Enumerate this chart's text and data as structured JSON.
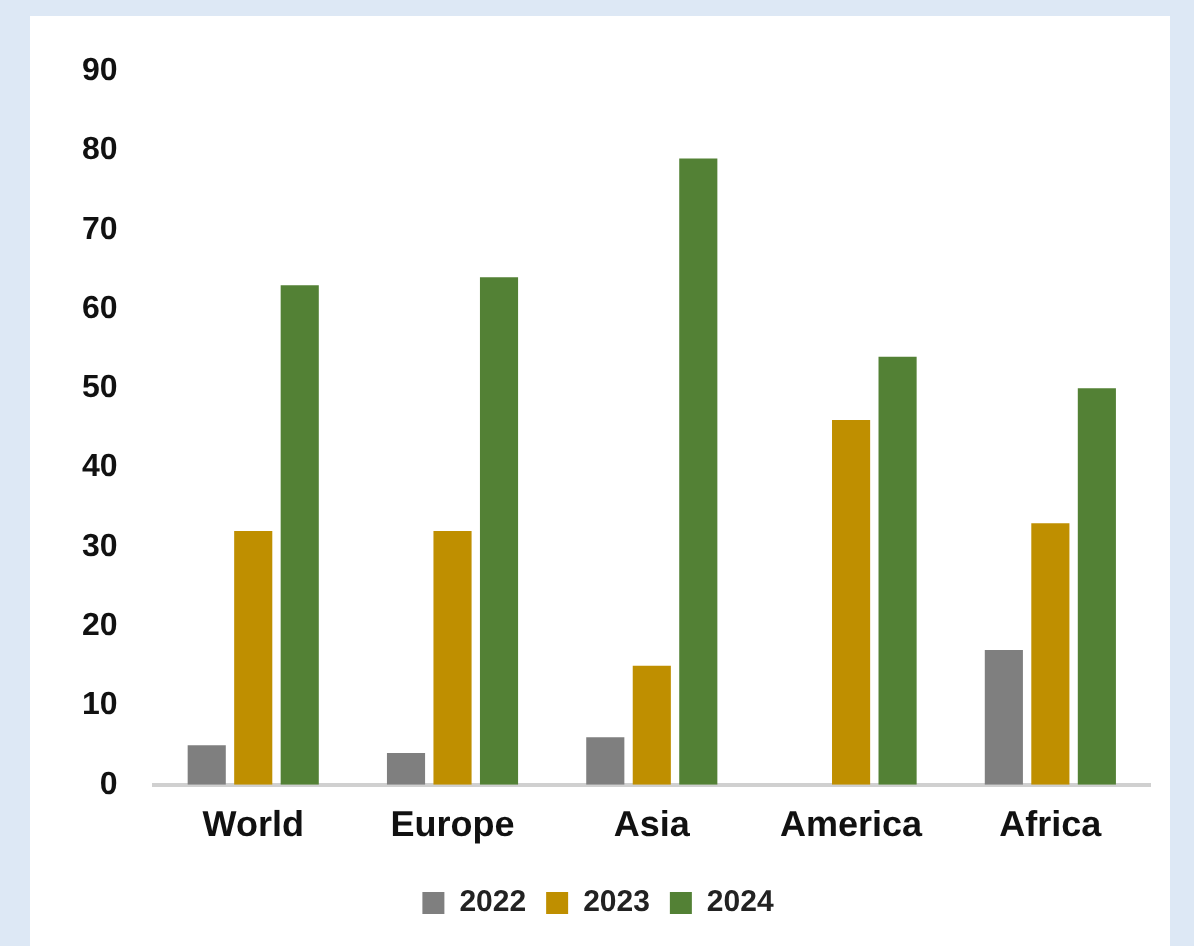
{
  "chart_data": {
    "type": "bar",
    "categories": [
      "World",
      "Europe",
      "Asia",
      "America",
      "Africa"
    ],
    "series": [
      {
        "name": "2022",
        "color": "#7f7f7f",
        "values": [
          5,
          4,
          6,
          null,
          17
        ]
      },
      {
        "name": "2023",
        "color": "#bf8f00",
        "values": [
          32,
          32,
          15,
          46,
          33
        ]
      },
      {
        "name": "2024",
        "color": "#538135",
        "values": [
          63,
          64,
          79,
          54,
          50
        ]
      }
    ],
    "ylim": [
      0,
      90
    ],
    "yticks": [
      0,
      10,
      20,
      30,
      40,
      50,
      60,
      70,
      80,
      90
    ],
    "grid": false,
    "legend": "bottom"
  }
}
